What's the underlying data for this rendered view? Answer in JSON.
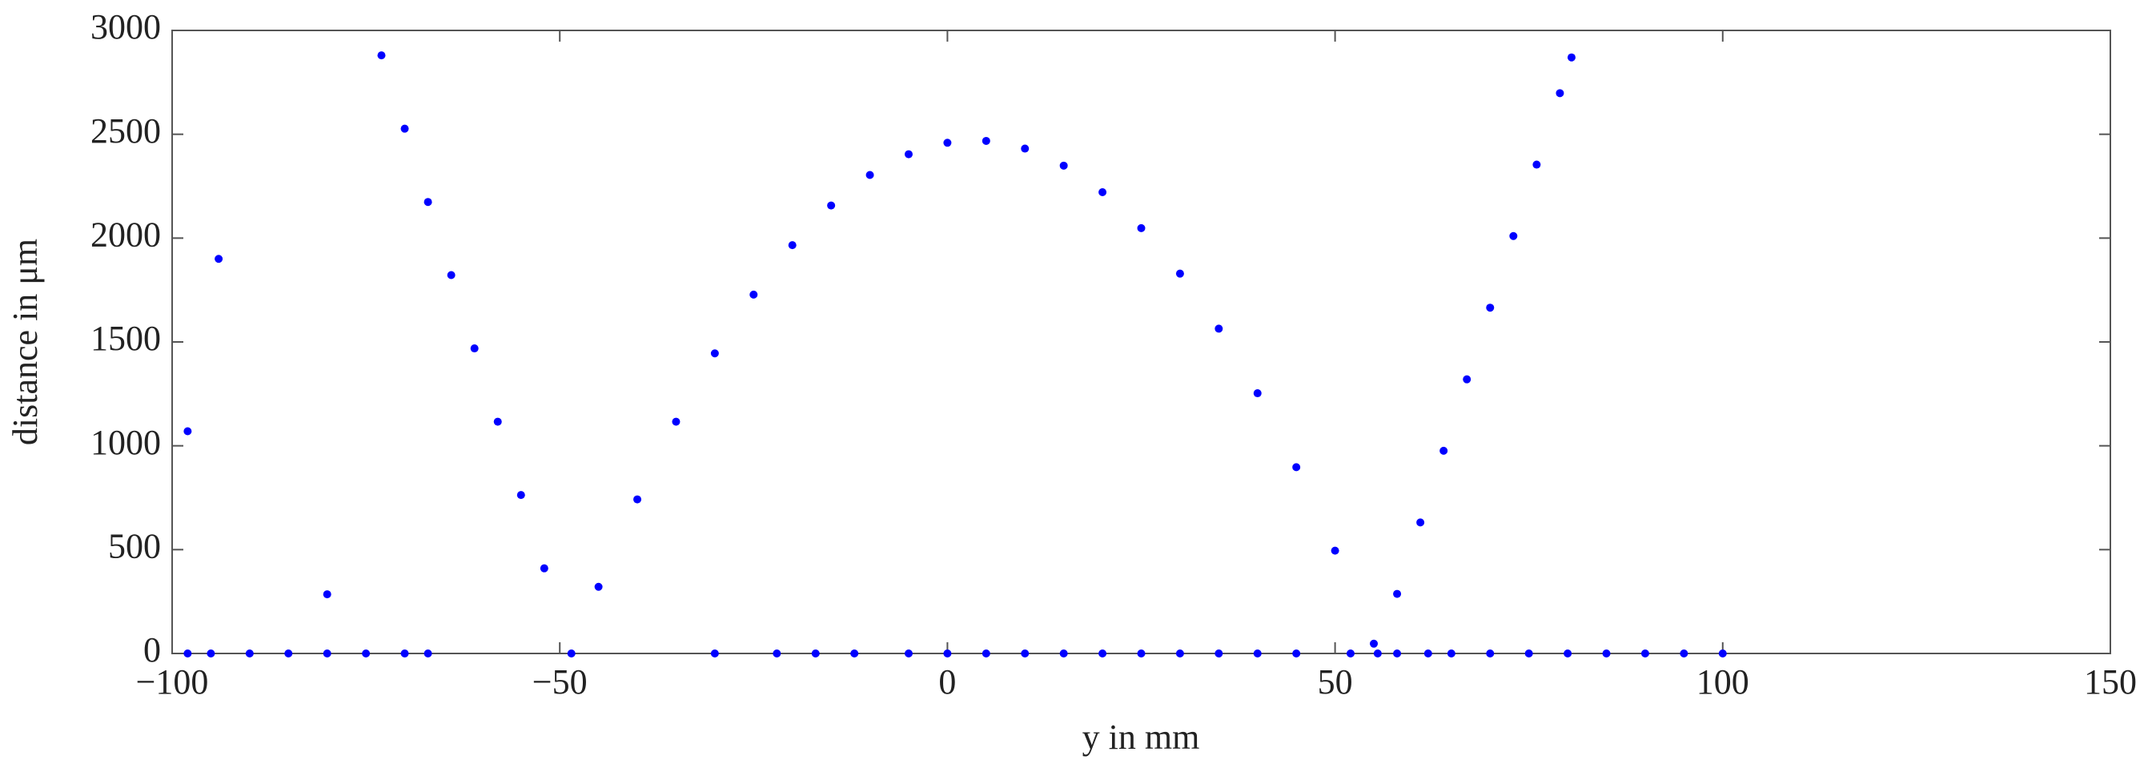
{
  "chart_data": {
    "type": "scatter",
    "xlabel": "y in mm",
    "ylabel": "distance in μm",
    "xlim": [
      -100,
      150
    ],
    "ylim": [
      0,
      3000
    ],
    "xticks": [
      {
        "value": -100,
        "label": "−100"
      },
      {
        "value": -50,
        "label": "−50"
      },
      0,
      50,
      100,
      150
    ],
    "yticks": [
      0,
      500,
      1000,
      1500,
      2000,
      2500,
      3000
    ],
    "grid": false,
    "series": [
      {
        "color": "#0000ff",
        "x": [
          -98,
          -94,
          -80,
          -73,
          -70,
          -67,
          -64,
          -61,
          -58,
          -55,
          -52,
          -48.5,
          -45,
          -40,
          -35,
          -30,
          -25,
          -20,
          -15,
          -10,
          -5,
          0,
          5,
          10,
          15,
          20,
          25,
          30,
          35,
          40,
          45,
          50,
          55,
          55.5,
          58,
          61,
          64,
          67,
          70,
          73,
          76,
          79,
          80.5,
          -98,
          -95,
          -90,
          -85,
          -80,
          -75,
          -70,
          -67,
          -30,
          -22,
          -17,
          -12,
          -5,
          0,
          5,
          10,
          15,
          20,
          25,
          30,
          35,
          40,
          45,
          52,
          58,
          62,
          65,
          70,
          75,
          80,
          85,
          90,
          95,
          100
        ],
        "values": [
          1070,
          1900,
          285,
          2880,
          2527,
          2174,
          1822,
          1469,
          1116,
          763,
          410,
          0,
          321,
          742,
          1116,
          1445,
          1728,
          1966,
          2157,
          2304,
          2404,
          2459,
          2468,
          2431,
          2349,
          2221,
          2048,
          1829,
          1564,
          1253,
          897,
          495,
          47,
          0,
          287,
          631,
          976,
          1320,
          1665,
          2010,
          2354,
          2698,
          2870,
          0,
          0,
          0,
          0,
          0,
          0,
          0,
          0,
          0,
          0,
          0,
          0,
          0,
          0,
          0,
          0,
          0,
          0,
          0,
          0,
          0,
          0,
          0,
          0,
          0,
          0,
          0,
          0,
          0,
          0,
          0,
          0,
          0,
          0
        ]
      }
    ]
  }
}
